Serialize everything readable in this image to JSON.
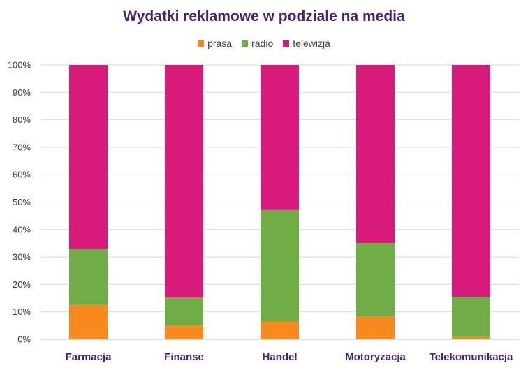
{
  "chart_data": {
    "type": "bar",
    "stacked": true,
    "title": "Wydatki reklamowe w podziale na media",
    "categories": [
      "Farmacja",
      "Finanse",
      "Handel",
      "Motoryzacja",
      "Telekomunikacja"
    ],
    "series": [
      {
        "name": "prasa",
        "color": "#f7891f",
        "values": [
          12.5,
          5.0,
          6.5,
          8.3,
          0.8
        ]
      },
      {
        "name": "radio",
        "color": "#70ad47",
        "values": [
          20.5,
          10.2,
          40.6,
          26.8,
          14.7
        ]
      },
      {
        "name": "telewizja",
        "color": "#d81b7a",
        "values": [
          67.0,
          84.8,
          52.9,
          64.9,
          84.5
        ]
      }
    ],
    "y_ticks": [
      "0%",
      "10%",
      "20%",
      "30%",
      "40%",
      "50%",
      "60%",
      "70%",
      "80%",
      "90%",
      "100%"
    ],
    "ylim": [
      0,
      100
    ],
    "grid": true,
    "legend_position": "top"
  }
}
